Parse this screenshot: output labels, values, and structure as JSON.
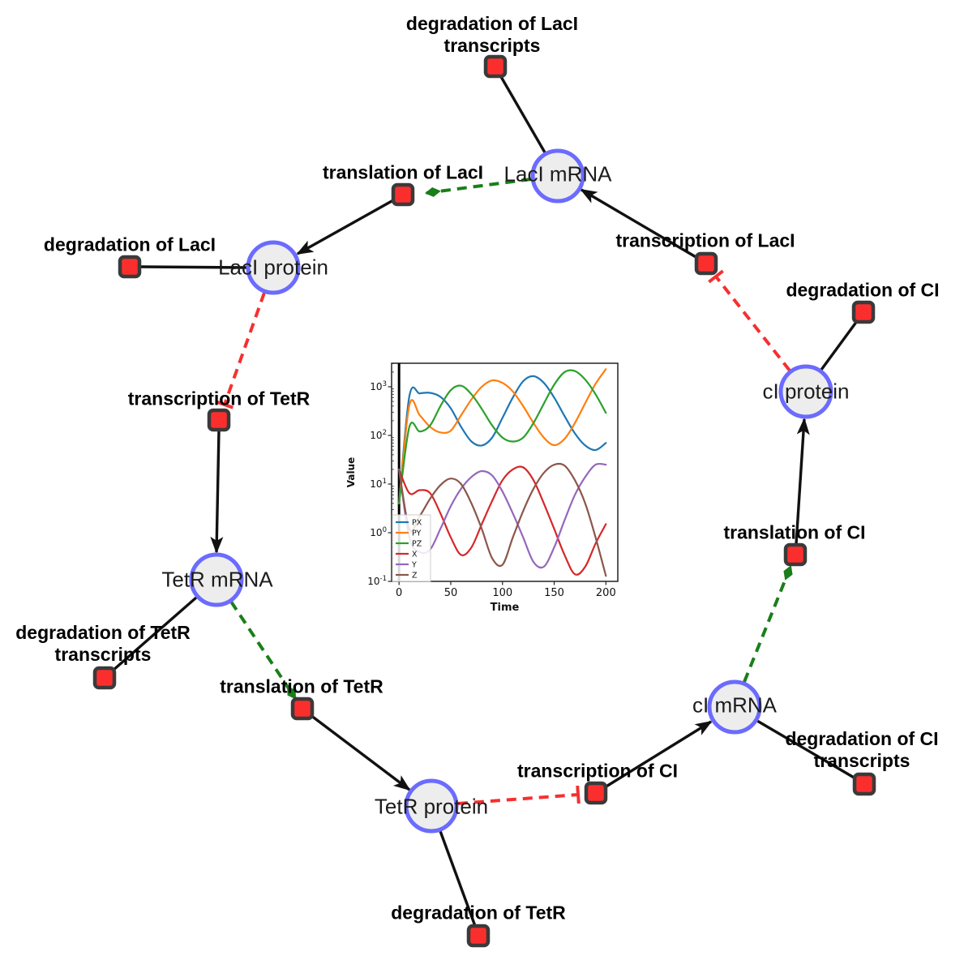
{
  "diagram": {
    "species": [
      {
        "label": "LacI mRNA"
      },
      {
        "label": "LacI protein"
      },
      {
        "label": "cI protein"
      },
      {
        "label": "TetR mRNA"
      },
      {
        "label": "TetR protein"
      },
      {
        "label": "cI mRNA"
      }
    ],
    "reactions": [
      {
        "lines": [
          "degradation of LacI",
          "transcripts"
        ]
      },
      {
        "lines": [
          "translation of LacI"
        ]
      },
      {
        "lines": [
          "degradation of LacI"
        ]
      },
      {
        "lines": [
          "transcription of LacI"
        ]
      },
      {
        "lines": [
          "degradation of CI"
        ]
      },
      {
        "lines": [
          "transcription of TetR"
        ]
      },
      {
        "lines": [
          "degradation of TetR",
          "transcripts"
        ]
      },
      {
        "lines": [
          "translation of TetR"
        ]
      },
      {
        "lines": [
          "degradation of TetR"
        ]
      },
      {
        "lines": [
          "transcription of CI"
        ]
      },
      {
        "lines": [
          "degradation of CI",
          "transcripts"
        ]
      },
      {
        "lines": [
          "translation of CI"
        ]
      }
    ],
    "colors": {
      "species_fill": "#ededed",
      "species_border": "#6b6bff",
      "reaction_fill": "#fb2e2e",
      "reaction_border": "#3a3a3a",
      "edge_black": "#111111",
      "edge_activation_green": "#1a7e1a",
      "edge_inhibition_red": "#f53030"
    }
  },
  "chart_data": {
    "type": "line",
    "title": "",
    "xlabel": "Time",
    "ylabel": "Value",
    "y_scale": "log",
    "x_ticks": [
      0,
      50,
      100,
      150,
      200
    ],
    "y_tick_exponents": [
      -1,
      0,
      1,
      2,
      3
    ],
    "x_range": [
      -7.2,
      211.5
    ],
    "ylog_range": [
      -1.0,
      3.483
    ],
    "vline_x": 0,
    "legend_position": "lower left",
    "grid": false,
    "x": [
      0,
      10,
      20,
      30,
      40,
      50,
      60,
      70,
      80,
      90,
      100,
      110,
      120,
      130,
      140,
      150,
      160,
      170,
      180,
      190,
      200
    ],
    "series": [
      {
        "name": "PX",
        "color": "#1f77b4",
        "values": [
          4,
          640,
          730,
          750,
          620,
          360,
          150,
          75,
          62,
          90,
          230,
          600,
          1300,
          1650,
          1200,
          600,
          250,
          110,
          62,
          50,
          70
        ]
      },
      {
        "name": "PY",
        "color": "#ff7f0e",
        "values": [
          4,
          420,
          260,
          150,
          115,
          125,
          260,
          550,
          1000,
          1350,
          1200,
          800,
          400,
          180,
          90,
          63,
          85,
          180,
          460,
          1150,
          2300
        ]
      },
      {
        "name": "PZ",
        "color": "#2ca02c",
        "values": [
          4,
          150,
          120,
          160,
          400,
          850,
          1050,
          700,
          350,
          160,
          90,
          75,
          90,
          180,
          450,
          1100,
          2000,
          2100,
          1400,
          700,
          290
        ]
      },
      {
        "name": "X",
        "color": "#d62728",
        "values": [
          20,
          6.5,
          7.5,
          6.5,
          2.5,
          0.8,
          0.35,
          0.5,
          1.5,
          4.5,
          12,
          20,
          22,
          12,
          4,
          1.2,
          0.35,
          0.14,
          0.2,
          0.6,
          1.5
        ]
      },
      {
        "name": "Y",
        "color": "#9467bd",
        "values": [
          20,
          0.8,
          0.4,
          0.45,
          1.2,
          3.5,
          8,
          14,
          18.5,
          15,
          7,
          2.5,
          0.8,
          0.25,
          0.2,
          0.5,
          1.8,
          6,
          14,
          25,
          25
        ]
      },
      {
        "name": "Z",
        "color": "#8c564b",
        "values": [
          20,
          1.2,
          2.2,
          5,
          9.5,
          13,
          10,
          4,
          1.2,
          0.3,
          0.22,
          0.8,
          2.8,
          8,
          17,
          25,
          24,
          12,
          4,
          0.8,
          0.13
        ]
      }
    ]
  }
}
